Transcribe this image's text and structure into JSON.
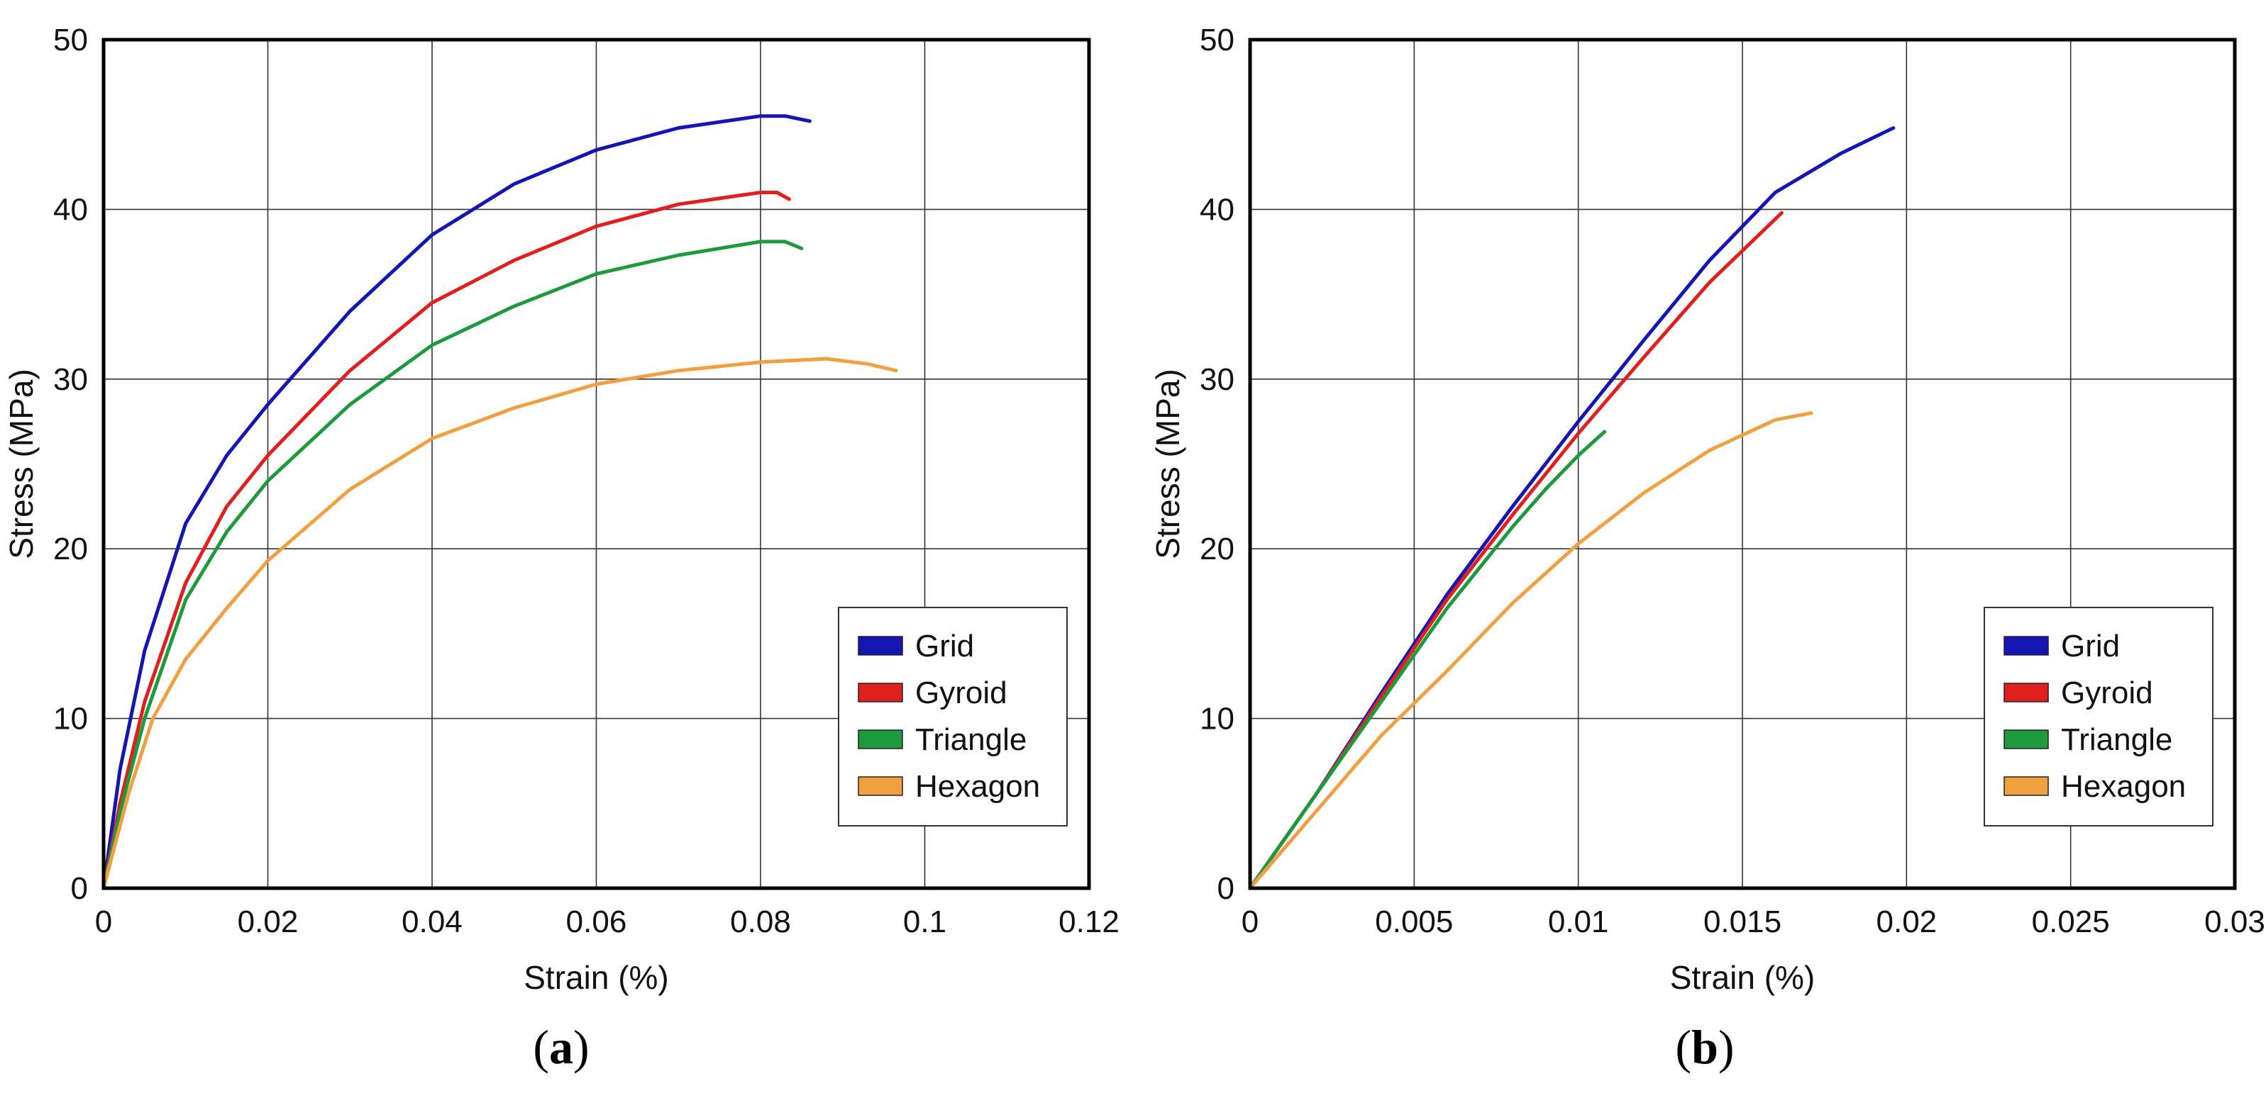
{
  "chart_data": [
    {
      "type": "line",
      "panel_label": {
        "open": "(",
        "letter": "a",
        "close": ")"
      },
      "xlabel": "Strain (%)",
      "ylabel": "Stress (MPa)",
      "xlim": [
        0,
        0.12
      ],
      "ylim": [
        0,
        50
      ],
      "xticks": [
        0,
        0.02,
        0.04,
        0.06,
        0.08,
        0.1,
        0.12
      ],
      "xtick_labels": [
        "0",
        "0.02",
        "0.04",
        "0.06",
        "0.08",
        "0.1",
        "0.12"
      ],
      "yticks": [
        0,
        10,
        20,
        30,
        40,
        50
      ],
      "ytick_labels": [
        "0",
        "10",
        "20",
        "30",
        "40",
        "50"
      ],
      "grid": true,
      "legend_position": "bottom-right",
      "series": [
        {
          "name": "Grid",
          "color": "#1515b4",
          "x": [
            0,
            0.002,
            0.005,
            0.01,
            0.015,
            0.02,
            0.03,
            0.04,
            0.05,
            0.06,
            0.07,
            0.08,
            0.083,
            0.086
          ],
          "y": [
            0,
            7,
            14,
            21.5,
            25.5,
            28.5,
            34,
            38.5,
            41.5,
            43.5,
            44.8,
            45.5,
            45.5,
            45.2
          ]
        },
        {
          "name": "Gyroid",
          "color": "#e01f1f",
          "x": [
            0,
            0.002,
            0.005,
            0.01,
            0.015,
            0.02,
            0.03,
            0.04,
            0.05,
            0.06,
            0.07,
            0.08,
            0.082,
            0.0835
          ],
          "y": [
            0,
            5,
            11,
            18,
            22.5,
            25.5,
            30.5,
            34.5,
            37,
            39,
            40.3,
            41,
            41,
            40.6
          ]
        },
        {
          "name": "Triangle",
          "color": "#1e9a3c",
          "x": [
            0,
            0.002,
            0.005,
            0.01,
            0.015,
            0.02,
            0.03,
            0.04,
            0.05,
            0.06,
            0.07,
            0.08,
            0.083,
            0.085
          ],
          "y": [
            0,
            4.5,
            10,
            17,
            21,
            24,
            28.5,
            32,
            34.3,
            36.2,
            37.3,
            38.1,
            38.1,
            37.7
          ]
        },
        {
          "name": "Hexagon",
          "color": "#f0a040",
          "x": [
            0,
            0.003,
            0.006,
            0.01,
            0.015,
            0.02,
            0.03,
            0.04,
            0.05,
            0.06,
            0.07,
            0.08,
            0.088,
            0.093,
            0.0965
          ],
          "y": [
            0,
            5.5,
            10,
            13.5,
            16.5,
            19.3,
            23.5,
            26.5,
            28.3,
            29.7,
            30.5,
            31,
            31.2,
            30.9,
            30.5
          ]
        }
      ]
    },
    {
      "type": "line",
      "panel_label": {
        "open": "(",
        "letter": "b",
        "close": ")"
      },
      "xlabel": "Strain (%)",
      "ylabel": "Stress (MPa)",
      "xlim": [
        0,
        0.03
      ],
      "ylim": [
        0,
        50
      ],
      "xticks": [
        0,
        0.005,
        0.01,
        0.015,
        0.02,
        0.025,
        0.03
      ],
      "xtick_labels": [
        "0",
        "0.005",
        "0.01",
        "0.015",
        "0.02",
        "0.025",
        "0.03"
      ],
      "yticks": [
        0,
        10,
        20,
        30,
        40,
        50
      ],
      "ytick_labels": [
        "0",
        "10",
        "20",
        "30",
        "40",
        "50"
      ],
      "grid": true,
      "legend_position": "bottom-right",
      "series": [
        {
          "name": "Grid",
          "color": "#1515b4",
          "x": [
            0,
            0.002,
            0.004,
            0.006,
            0.008,
            0.01,
            0.012,
            0.014,
            0.016,
            0.018,
            0.0196
          ],
          "y": [
            0,
            5.5,
            11.5,
            17.3,
            22.5,
            27.5,
            32.3,
            37,
            41,
            43.3,
            44.8
          ]
        },
        {
          "name": "Gyroid",
          "color": "#e01f1f",
          "x": [
            0,
            0.002,
            0.004,
            0.006,
            0.008,
            0.01,
            0.012,
            0.014,
            0.0162
          ],
          "y": [
            0,
            5.5,
            11.3,
            17,
            22,
            26.8,
            31.3,
            35.7,
            39.8
          ]
        },
        {
          "name": "Triangle",
          "color": "#1e9a3c",
          "x": [
            0,
            0.002,
            0.004,
            0.006,
            0.008,
            0.009,
            0.01,
            0.0108
          ],
          "y": [
            0,
            5.5,
            11,
            16.5,
            21.3,
            23.5,
            25.5,
            26.9
          ]
        },
        {
          "name": "Hexagon",
          "color": "#f0a040",
          "x": [
            0,
            0.002,
            0.004,
            0.006,
            0.008,
            0.01,
            0.012,
            0.014,
            0.016,
            0.0171
          ],
          "y": [
            0,
            4.5,
            9,
            12.8,
            16.8,
            20.3,
            23.3,
            25.8,
            27.6,
            28
          ]
        }
      ]
    }
  ]
}
